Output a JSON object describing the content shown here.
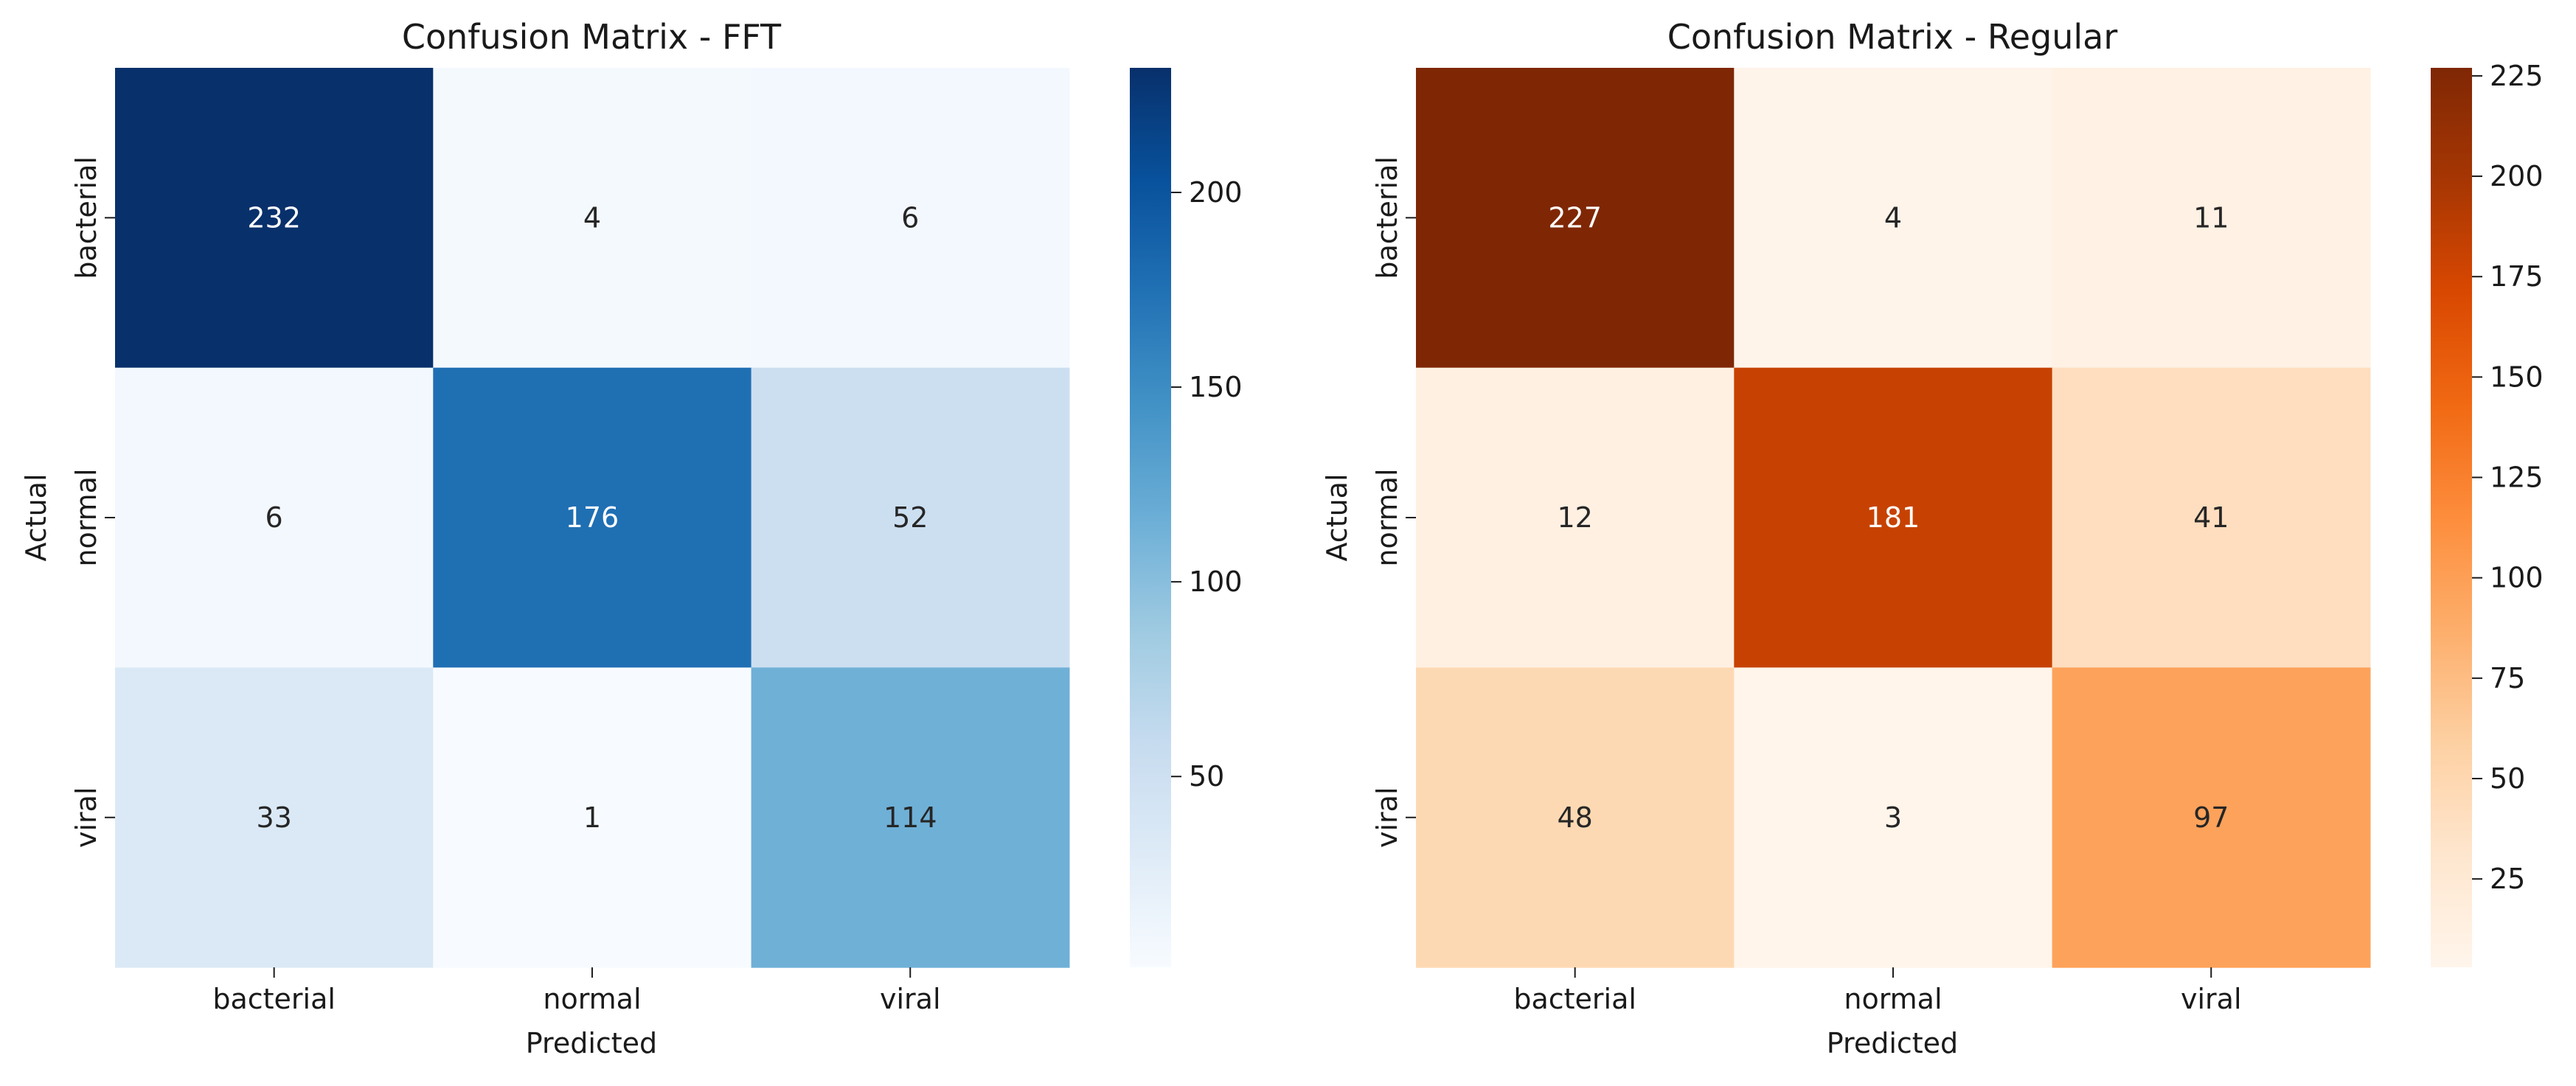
{
  "chart_data": [
    {
      "type": "heatmap",
      "title": "Confusion Matrix - FFT",
      "xlabel": "Predicted",
      "ylabel": "Actual",
      "x_categories": [
        "bacterial",
        "normal",
        "viral"
      ],
      "y_categories": [
        "bacterial",
        "normal",
        "viral"
      ],
      "values": [
        [
          232,
          4,
          6
        ],
        [
          6,
          176,
          52
        ],
        [
          33,
          1,
          114
        ]
      ],
      "colormap": "Blues",
      "color_range": [
        1,
        232
      ],
      "colorbar_ticks": [
        50,
        100,
        150,
        200
      ],
      "colors": {
        "low": "#f7fbff",
        "high": "#08306b"
      }
    },
    {
      "type": "heatmap",
      "title": "Confusion Matrix - Regular",
      "xlabel": "Predicted",
      "ylabel": "Actual",
      "x_categories": [
        "bacterial",
        "normal",
        "viral"
      ],
      "y_categories": [
        "bacterial",
        "normal",
        "viral"
      ],
      "values": [
        [
          227,
          4,
          11
        ],
        [
          12,
          181,
          41
        ],
        [
          48,
          3,
          97
        ]
      ],
      "colormap": "Oranges",
      "color_range": [
        3,
        227
      ],
      "colorbar_ticks": [
        25,
        50,
        75,
        100,
        125,
        150,
        175,
        200,
        225
      ],
      "colors": {
        "low": "#fff5eb",
        "high": "#7f2704"
      }
    }
  ]
}
